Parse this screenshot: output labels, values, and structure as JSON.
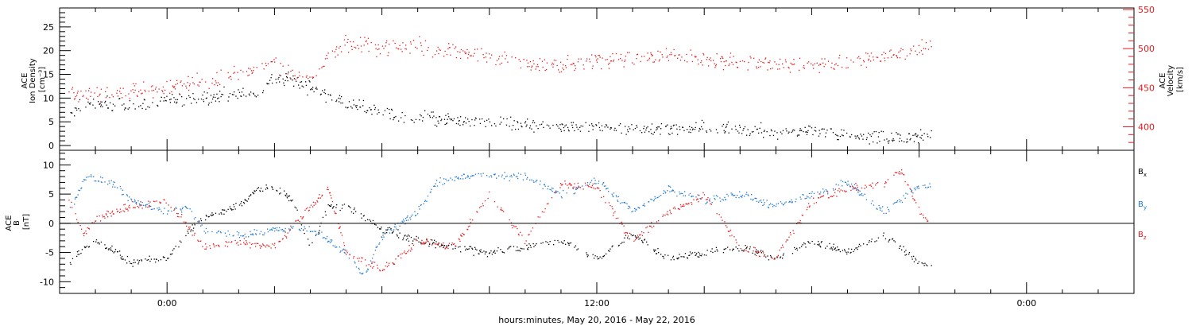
{
  "chart_data": [
    {
      "type": "scatter",
      "panel": "top",
      "time_start": "2016-05-20 21:00",
      "time_end": "2016-05-22 03:00",
      "x_ticks": [
        {
          "time": "2016-05-21 00:00",
          "label": "0:00"
        },
        {
          "time": "2016-05-21 12:00",
          "label": "12:00"
        },
        {
          "time": "2016-05-22 00:00",
          "label": "0:00"
        }
      ],
      "y_left": {
        "ylim": [
          -1,
          29
        ],
        "ticks": [
          0,
          5,
          10,
          15,
          20,
          25
        ],
        "label_lines": [
          "ACE",
          "Ion Density",
          "[cm⁻³]"
        ]
      },
      "y_right": {
        "ylim": [
          370,
          552
        ],
        "ticks": [
          400,
          450,
          500,
          550
        ],
        "label_lines": [
          "ACE",
          "Velocity",
          "[km/s]"
        ],
        "color": "#e41a1c"
      },
      "series": [
        {
          "axis": "left",
          "color": "#000000",
          "points": [
            [
              "2016-05-20 21:15",
              7.5
            ],
            [
              "2016-05-20 22:00",
              9
            ],
            [
              "2016-05-20 23:00",
              8.5
            ],
            [
              "2016-05-21 00:00",
              9.5
            ],
            [
              "2016-05-21 01:00",
              10
            ],
            [
              "2016-05-21 02:00",
              11
            ],
            [
              "2016-05-21 02:30",
              10.5
            ],
            [
              "2016-05-21 03:00",
              15
            ],
            [
              "2016-05-21 03:30",
              14
            ],
            [
              "2016-05-21 04:00",
              12
            ],
            [
              "2016-05-21 04:30",
              10.5
            ],
            [
              "2016-05-21 05:00",
              9
            ],
            [
              "2016-05-21 05:30",
              8
            ],
            [
              "2016-05-21 06:00",
              7
            ],
            [
              "2016-05-21 07:00",
              6
            ],
            [
              "2016-05-21 08:00",
              5.5
            ],
            [
              "2016-05-21 09:00",
              5.5
            ],
            [
              "2016-05-21 10:00",
              4.5
            ],
            [
              "2016-05-21 11:00",
              4
            ],
            [
              "2016-05-21 12:00",
              4
            ],
            [
              "2016-05-21 13:00",
              3.5
            ],
            [
              "2016-05-21 14:00",
              3.5
            ],
            [
              "2016-05-21 15:00",
              4
            ],
            [
              "2016-05-21 16:00",
              3.5
            ],
            [
              "2016-05-21 17:00",
              3
            ],
            [
              "2016-05-21 18:00",
              3
            ],
            [
              "2016-05-21 19:00",
              2.5
            ],
            [
              "2016-05-21 20:00",
              1.5
            ],
            [
              "2016-05-21 21:00",
              2
            ],
            [
              "2016-05-21 21:20",
              2
            ]
          ]
        },
        {
          "axis": "right",
          "color": "#e41a1c",
          "points": [
            [
              "2016-05-20 21:15",
              445
            ],
            [
              "2016-05-20 22:00",
              440
            ],
            [
              "2016-05-20 23:00",
              445
            ],
            [
              "2016-05-21 00:00",
              450
            ],
            [
              "2016-05-21 01:00",
              460
            ],
            [
              "2016-05-21 02:00",
              470
            ],
            [
              "2016-05-21 03:00",
              480
            ],
            [
              "2016-05-21 04:00",
              455
            ],
            [
              "2016-05-21 04:30",
              490
            ],
            [
              "2016-05-21 05:00",
              510
            ],
            [
              "2016-05-21 06:00",
              500
            ],
            [
              "2016-05-21 07:00",
              505
            ],
            [
              "2016-05-21 08:00",
              495
            ],
            [
              "2016-05-21 09:00",
              490
            ],
            [
              "2016-05-21 10:00",
              480
            ],
            [
              "2016-05-21 11:00",
              480
            ],
            [
              "2016-05-21 12:00",
              485
            ],
            [
              "2016-05-21 13:00",
              490
            ],
            [
              "2016-05-21 14:00",
              490
            ],
            [
              "2016-05-21 15:00",
              485
            ],
            [
              "2016-05-21 16:00",
              485
            ],
            [
              "2016-05-21 17:00",
              480
            ],
            [
              "2016-05-21 18:00",
              480
            ],
            [
              "2016-05-21 19:00",
              480
            ],
            [
              "2016-05-21 20:00",
              490
            ],
            [
              "2016-05-21 21:00",
              500
            ],
            [
              "2016-05-21 21:20",
              505
            ]
          ]
        }
      ]
    },
    {
      "type": "scatter",
      "panel": "bottom",
      "time_start": "2016-05-20 21:00",
      "time_end": "2016-05-22 03:00",
      "x_ticks": [
        {
          "time": "2016-05-21 00:00",
          "label": "0:00"
        },
        {
          "time": "2016-05-21 12:00",
          "label": "12:00"
        },
        {
          "time": "2016-05-22 00:00",
          "label": "0:00"
        }
      ],
      "xlabel": "hours:minutes, May 20, 2016 - May 22, 2016",
      "y_left": {
        "ylim": [
          -12,
          12.5
        ],
        "ticks": [
          -10,
          -5,
          0,
          5,
          10
        ],
        "label_lines": [
          "ACE",
          "B",
          "[nT]"
        ]
      },
      "zero_line": true,
      "series": [
        {
          "name": "Bx",
          "name_base": "B",
          "name_sub": "x",
          "color": "#000000",
          "points": [
            [
              "2016-05-20 21:15",
              -7
            ],
            [
              "2016-05-20 21:40",
              -4
            ],
            [
              "2016-05-20 22:00",
              -3
            ],
            [
              "2016-05-20 23:00",
              -6.5
            ],
            [
              "2016-05-21 00:00",
              -6
            ],
            [
              "2016-05-21 00:30",
              -2
            ],
            [
              "2016-05-21 01:00",
              1
            ],
            [
              "2016-05-21 02:00",
              3
            ],
            [
              "2016-05-21 02:30",
              6
            ],
            [
              "2016-05-21 03:00",
              6
            ],
            [
              "2016-05-21 03:30",
              4
            ],
            [
              "2016-05-21 04:00",
              -4
            ],
            [
              "2016-05-21 04:30",
              3
            ],
            [
              "2016-05-21 05:00",
              3
            ],
            [
              "2016-05-21 06:00",
              -1
            ],
            [
              "2016-05-21 07:00",
              -3
            ],
            [
              "2016-05-21 08:00",
              -4
            ],
            [
              "2016-05-21 09:00",
              -5
            ],
            [
              "2016-05-21 10:00",
              -4
            ],
            [
              "2016-05-21 11:00",
              -3
            ],
            [
              "2016-05-21 12:00",
              -6
            ],
            [
              "2016-05-21 13:00",
              -2
            ],
            [
              "2016-05-21 14:00",
              -6
            ],
            [
              "2016-05-21 15:00",
              -5
            ],
            [
              "2016-05-21 16:00",
              -4
            ],
            [
              "2016-05-21 17:00",
              -6
            ],
            [
              "2016-05-21 18:00",
              -3
            ],
            [
              "2016-05-21 19:00",
              -5
            ],
            [
              "2016-05-21 20:00",
              -2
            ],
            [
              "2016-05-21 20:30",
              -4
            ],
            [
              "2016-05-21 21:00",
              -7
            ],
            [
              "2016-05-21 21:20",
              -7
            ]
          ]
        },
        {
          "name": "By",
          "name_base": "B",
          "name_sub": "y",
          "color": "#1f78d1",
          "points": [
            [
              "2016-05-20 21:15",
              2
            ],
            [
              "2016-05-20 21:45",
              8
            ],
            [
              "2016-05-20 22:30",
              7
            ],
            [
              "2016-05-20 23:00",
              4
            ],
            [
              "2016-05-21 00:00",
              2
            ],
            [
              "2016-05-21 00:30",
              3
            ],
            [
              "2016-05-21 01:00",
              -1
            ],
            [
              "2016-05-21 02:00",
              -2
            ],
            [
              "2016-05-21 03:00",
              -1
            ],
            [
              "2016-05-21 04:00",
              -1
            ],
            [
              "2016-05-21 05:00",
              -5
            ],
            [
              "2016-05-21 05:30",
              -9
            ],
            [
              "2016-05-21 06:00",
              -2
            ],
            [
              "2016-05-21 07:00",
              2
            ],
            [
              "2016-05-21 07:30",
              7
            ],
            [
              "2016-05-21 08:00",
              8
            ],
            [
              "2016-05-21 09:00",
              8.5
            ],
            [
              "2016-05-21 10:00",
              8
            ],
            [
              "2016-05-21 11:00",
              5
            ],
            [
              "2016-05-21 12:00",
              7.5
            ],
            [
              "2016-05-21 13:00",
              2
            ],
            [
              "2016-05-21 14:00",
              6
            ],
            [
              "2016-05-21 15:00",
              4
            ],
            [
              "2016-05-21 16:00",
              5
            ],
            [
              "2016-05-21 17:00",
              3
            ],
            [
              "2016-05-21 18:00",
              5
            ],
            [
              "2016-05-21 19:00",
              7
            ],
            [
              "2016-05-21 20:00",
              2
            ],
            [
              "2016-05-21 21:00",
              6.5
            ],
            [
              "2016-05-21 21:20",
              6.5
            ]
          ]
        },
        {
          "name": "Bz",
          "name_base": "B",
          "name_sub": "z",
          "color": "#e41a1c",
          "points": [
            [
              "2016-05-20 21:15",
              4
            ],
            [
              "2016-05-20 21:40",
              -2
            ],
            [
              "2016-05-20 22:00",
              1
            ],
            [
              "2016-05-20 23:00",
              3
            ],
            [
              "2016-05-21 00:00",
              4
            ],
            [
              "2016-05-21 01:00",
              -4
            ],
            [
              "2016-05-21 02:00",
              -3
            ],
            [
              "2016-05-21 03:00",
              -4
            ],
            [
              "2016-05-21 04:00",
              3
            ],
            [
              "2016-05-21 04:30",
              6
            ],
            [
              "2016-05-21 05:00",
              -5
            ],
            [
              "2016-05-21 06:00",
              -8
            ],
            [
              "2016-05-21 07:00",
              -3
            ],
            [
              "2016-05-21 08:00",
              -4
            ],
            [
              "2016-05-21 09:00",
              5
            ],
            [
              "2016-05-21 10:00",
              -3
            ],
            [
              "2016-05-21 11:00",
              7
            ],
            [
              "2016-05-21 12:00",
              6
            ],
            [
              "2016-05-21 13:00",
              -3
            ],
            [
              "2016-05-21 14:00",
              2
            ],
            [
              "2016-05-21 15:00",
              5
            ],
            [
              "2016-05-21 16:00",
              -4
            ],
            [
              "2016-05-21 17:00",
              -6
            ],
            [
              "2016-05-21 18:00",
              4
            ],
            [
              "2016-05-21 19:00",
              6
            ],
            [
              "2016-05-21 20:00",
              7
            ],
            [
              "2016-05-21 20:30",
              9
            ],
            [
              "2016-05-21 21:00",
              2
            ],
            [
              "2016-05-21 21:20",
              0
            ]
          ]
        }
      ]
    }
  ]
}
